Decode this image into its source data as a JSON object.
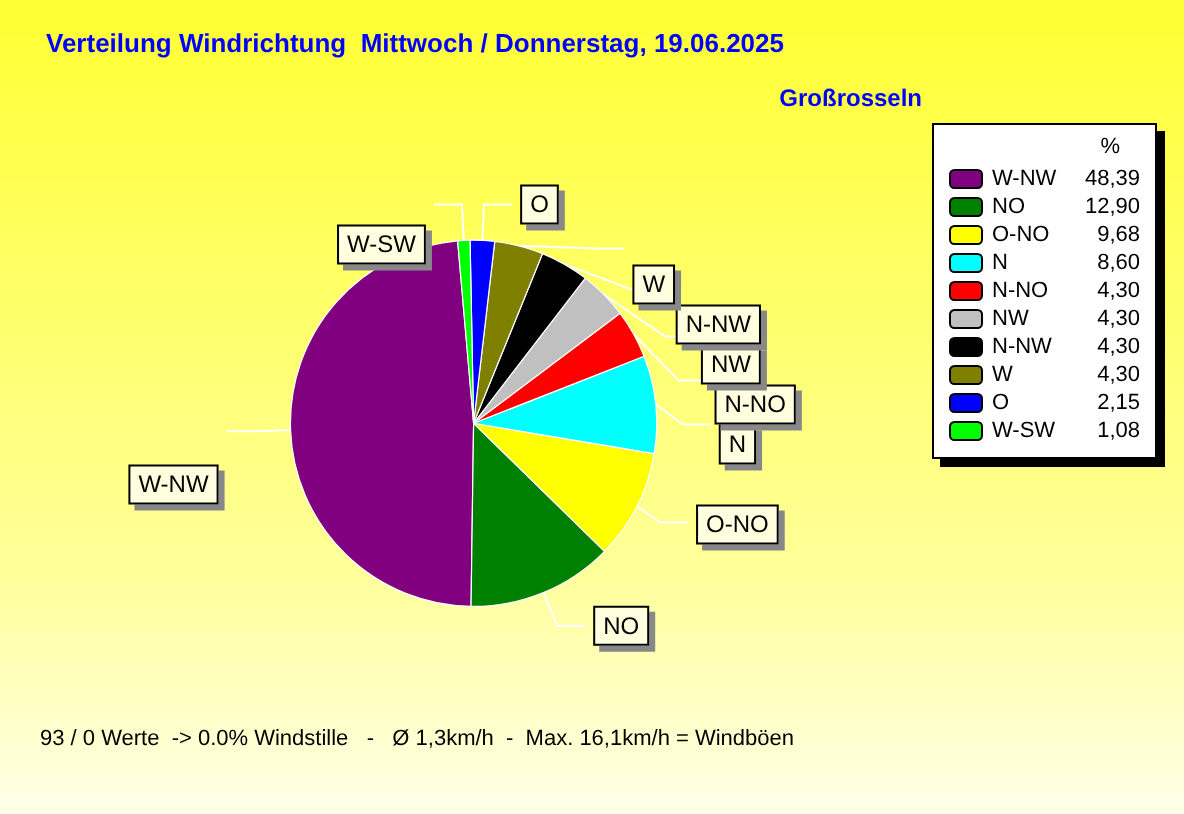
{
  "chart_data": {
    "type": "pie",
    "title": "Verteilung Windrichtung  Mittwoch / Donnerstag, 19.06.2025",
    "subtitle": "Großrosseln",
    "legend_title": "%",
    "categories": [
      "W-NW",
      "NO",
      "O-NO",
      "N",
      "N-NO",
      "NW",
      "N-NW",
      "W",
      "O",
      "W-SW"
    ],
    "values": [
      48.39,
      12.9,
      9.68,
      8.6,
      4.3,
      4.3,
      4.3,
      4.3,
      2.15,
      1.08
    ],
    "value_labels": [
      "48,39",
      "12,90",
      "9,68",
      "8,60",
      "4,30",
      "4,30",
      "4,30",
      "4,30",
      "2,15",
      "1,08"
    ],
    "colors": [
      "#800080",
      "#008000",
      "#ffff00",
      "#00ffff",
      "#ff0000",
      "#c0c0c0",
      "#000000",
      "#808000",
      "#0000ff",
      "#00ff00"
    ],
    "legend": "right",
    "annotations": [
      "93 / 0 Werte  -> 0.0% Windstille   -   Ø 1,3km/h  -  Max. 16,1km/h = Windböen"
    ]
  }
}
